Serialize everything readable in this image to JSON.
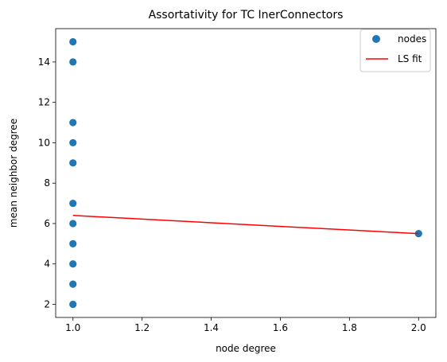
{
  "chart_data": {
    "type": "scatter",
    "title": "Assortativity for TC InerConnectors",
    "xlabel": "node degree",
    "ylabel": "mean neighbor degree",
    "xlim": [
      0.95,
      2.05
    ],
    "ylim": [
      1.35,
      15.65
    ],
    "xticks": [
      1.0,
      1.2,
      1.4,
      1.6,
      1.8,
      2.0
    ],
    "xtick_labels": [
      "1.0",
      "1.2",
      "1.4",
      "1.6",
      "1.8",
      "2.0"
    ],
    "yticks": [
      2,
      4,
      6,
      8,
      10,
      12,
      14
    ],
    "ytick_labels": [
      "2",
      "4",
      "6",
      "8",
      "10",
      "12",
      "14"
    ],
    "grid": false,
    "legend_position": "top-right",
    "series": [
      {
        "name": "nodes",
        "kind": "scatter",
        "color": "#1f77b4",
        "points": [
          [
            1,
            15
          ],
          [
            1,
            14
          ],
          [
            1,
            11
          ],
          [
            1,
            10
          ],
          [
            1,
            9
          ],
          [
            1,
            7
          ],
          [
            1,
            6
          ],
          [
            1,
            5
          ],
          [
            1,
            4
          ],
          [
            1,
            3
          ],
          [
            1,
            2
          ],
          [
            2,
            5.5
          ]
        ]
      },
      {
        "name": "LS fit",
        "kind": "line",
        "color": "#ff0000",
        "points": [
          [
            1,
            6.4
          ],
          [
            2,
            5.5
          ]
        ]
      }
    ]
  }
}
